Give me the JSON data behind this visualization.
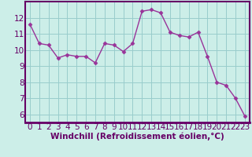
{
  "x": [
    0,
    1,
    2,
    3,
    4,
    5,
    6,
    7,
    8,
    9,
    10,
    11,
    12,
    13,
    14,
    15,
    16,
    17,
    18,
    19,
    20,
    21,
    22,
    23
  ],
  "y": [
    11.6,
    10.4,
    10.3,
    9.5,
    9.7,
    9.6,
    9.6,
    9.2,
    10.4,
    10.3,
    9.9,
    10.4,
    12.4,
    12.5,
    12.3,
    11.1,
    10.9,
    10.8,
    11.1,
    9.6,
    8.0,
    7.8,
    7.0,
    5.9
  ],
  "line_color": "#993399",
  "marker": "D",
  "marker_size": 2.5,
  "bg_color": "#cceee8",
  "grid_color": "#99cccc",
  "axis_bar_color": "#660066",
  "xlabel": "Windchill (Refroidissement éolien,°C)",
  "xlim": [
    -0.5,
    23.5
  ],
  "ylim": [
    5.5,
    13.0
  ],
  "yticks": [
    6,
    7,
    8,
    9,
    10,
    11,
    12
  ],
  "xticks": [
    0,
    1,
    2,
    3,
    4,
    5,
    6,
    7,
    8,
    9,
    10,
    11,
    12,
    13,
    14,
    15,
    16,
    17,
    18,
    19,
    20,
    21,
    22,
    23
  ],
  "font_color": "#660066",
  "line_width": 1.0,
  "xlabel_fontsize": 7.5,
  "tick_fontsize": 7.5,
  "spine_color": "#660066"
}
